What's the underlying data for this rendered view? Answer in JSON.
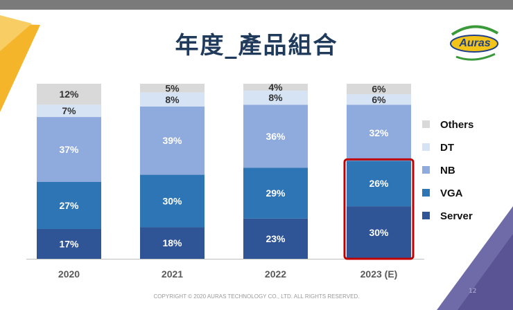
{
  "slide": {
    "title": "年度_產品組合",
    "logo_text": "Auras",
    "footer": "COPYRIGHT © 2020 AURAS TECHNOLOGY CO., LTD. ALL RIGHTS RESERVED.",
    "page_number": "12"
  },
  "chart_data": {
    "type": "bar",
    "stacked": true,
    "title": "年度_產品組合",
    "categories": [
      "2020",
      "2021",
      "2022",
      "2023 (E)"
    ],
    "series": [
      {
        "name": "Server",
        "color": "#2f5597",
        "values": [
          17,
          18,
          23,
          30
        ]
      },
      {
        "name": "VGA",
        "color": "#2e75b6",
        "values": [
          27,
          30,
          29,
          26
        ]
      },
      {
        "name": "NB",
        "color": "#8faadc",
        "values": [
          37,
          39,
          36,
          32
        ]
      },
      {
        "name": "DT",
        "color": "#d5e3f5",
        "values": [
          7,
          8,
          8,
          6
        ]
      },
      {
        "name": "Others",
        "color": "#d9d9d9",
        "values": [
          12,
          5,
          4,
          6
        ]
      }
    ],
    "value_suffix": "%",
    "legend_order": [
      "Others",
      "DT",
      "NB",
      "VGA",
      "Server"
    ],
    "legend_position": "right",
    "highlight": {
      "category": "2023 (E)",
      "series": [
        "Server",
        "VGA"
      ],
      "color": "#c00000"
    },
    "ylim": [
      0,
      100
    ],
    "grid": false
  }
}
